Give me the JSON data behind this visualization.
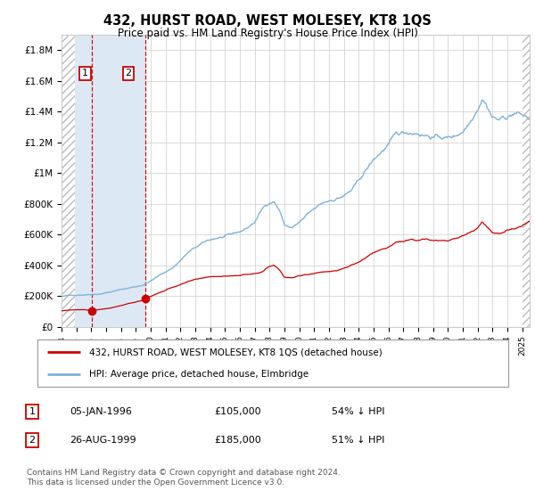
{
  "title": "432, HURST ROAD, WEST MOLESEY, KT8 1QS",
  "subtitle": "Price paid vs. HM Land Registry's House Price Index (HPI)",
  "x_start_year": 1994.0,
  "x_end_year": 2025.5,
  "y_min": 0,
  "y_max": 1900000,
  "y_ticks": [
    0,
    200000,
    400000,
    600000,
    800000,
    1000000,
    1200000,
    1400000,
    1600000,
    1800000
  ],
  "y_tick_labels": [
    "£0",
    "£200K",
    "£400K",
    "£600K",
    "£800K",
    "£1M",
    "£1.2M",
    "£1.4M",
    "£1.6M",
    "£1.8M"
  ],
  "transactions": [
    {
      "date_num": 1996.04,
      "price": 105000,
      "label": "1"
    },
    {
      "date_num": 1999.65,
      "price": 185000,
      "label": "2"
    }
  ],
  "transaction_color": "#cc0000",
  "hpi_color": "#7db3d8",
  "shade_color": "#dce9f5",
  "vline_color": "#cc0000",
  "grid_color": "#cccccc",
  "bg_color": "#ffffff",
  "hatch_color": "#bbbbbb",
  "legend_entries": [
    "432, HURST ROAD, WEST MOLESEY, KT8 1QS (detached house)",
    "HPI: Average price, detached house, Elmbridge"
  ],
  "footnote": "Contains HM Land Registry data © Crown copyright and database right 2024.\nThis data is licensed under the Open Government Licence v3.0.",
  "table_rows": [
    {
      "num": "1",
      "date": "05-JAN-1996",
      "price": "£105,000",
      "hpi": "54% ↓ HPI"
    },
    {
      "num": "2",
      "date": "26-AUG-1999",
      "price": "£185,000",
      "hpi": "51% ↓ HPI"
    }
  ],
  "hpi_keypoints": [
    [
      1994.0,
      195000
    ],
    [
      1994.5,
      200000
    ],
    [
      1995.0,
      205000
    ],
    [
      1995.5,
      210000
    ],
    [
      1996.0,
      215000
    ],
    [
      1996.5,
      220000
    ],
    [
      1997.0,
      230000
    ],
    [
      1997.5,
      240000
    ],
    [
      1998.0,
      250000
    ],
    [
      1998.5,
      260000
    ],
    [
      1999.0,
      270000
    ],
    [
      1999.5,
      285000
    ],
    [
      2000.0,
      310000
    ],
    [
      2000.5,
      340000
    ],
    [
      2001.0,
      370000
    ],
    [
      2001.5,
      400000
    ],
    [
      2002.0,
      450000
    ],
    [
      2002.5,
      500000
    ],
    [
      2003.0,
      530000
    ],
    [
      2003.5,
      555000
    ],
    [
      2004.0,
      575000
    ],
    [
      2004.5,
      590000
    ],
    [
      2005.0,
      595000
    ],
    [
      2005.5,
      600000
    ],
    [
      2006.0,
      615000
    ],
    [
      2006.5,
      640000
    ],
    [
      2007.0,
      680000
    ],
    [
      2007.5,
      760000
    ],
    [
      2008.0,
      810000
    ],
    [
      2008.3,
      820000
    ],
    [
      2008.7,
      760000
    ],
    [
      2009.0,
      665000
    ],
    [
      2009.5,
      650000
    ],
    [
      2010.0,
      680000
    ],
    [
      2010.5,
      720000
    ],
    [
      2011.0,
      750000
    ],
    [
      2011.5,
      780000
    ],
    [
      2012.0,
      800000
    ],
    [
      2012.5,
      820000
    ],
    [
      2013.0,
      840000
    ],
    [
      2013.5,
      870000
    ],
    [
      2014.0,
      920000
    ],
    [
      2014.5,
      990000
    ],
    [
      2015.0,
      1050000
    ],
    [
      2015.5,
      1100000
    ],
    [
      2016.0,
      1150000
    ],
    [
      2016.5,
      1190000
    ],
    [
      2017.0,
      1200000
    ],
    [
      2017.5,
      1210000
    ],
    [
      2018.0,
      1220000
    ],
    [
      2018.5,
      1215000
    ],
    [
      2019.0,
      1210000
    ],
    [
      2019.5,
      1205000
    ],
    [
      2020.0,
      1200000
    ],
    [
      2020.5,
      1210000
    ],
    [
      2021.0,
      1250000
    ],
    [
      2021.5,
      1320000
    ],
    [
      2022.0,
      1430000
    ],
    [
      2022.3,
      1510000
    ],
    [
      2022.5,
      1490000
    ],
    [
      2022.8,
      1440000
    ],
    [
      2023.0,
      1400000
    ],
    [
      2023.5,
      1380000
    ],
    [
      2024.0,
      1400000
    ],
    [
      2024.5,
      1430000
    ],
    [
      2025.0,
      1410000
    ],
    [
      2025.5,
      1380000
    ]
  ],
  "pp_keypoints": [
    [
      1994.0,
      100000
    ],
    [
      1994.5,
      105000
    ],
    [
      1995.0,
      108000
    ],
    [
      1995.5,
      110000
    ],
    [
      1996.04,
      105000
    ],
    [
      1996.5,
      112000
    ],
    [
      1997.0,
      118000
    ],
    [
      1997.5,
      125000
    ],
    [
      1998.0,
      135000
    ],
    [
      1998.5,
      148000
    ],
    [
      1999.0,
      158000
    ],
    [
      1999.5,
      168000
    ],
    [
      1999.65,
      185000
    ],
    [
      2000.0,
      195000
    ],
    [
      2000.5,
      215000
    ],
    [
      2001.0,
      235000
    ],
    [
      2001.5,
      255000
    ],
    [
      2002.0,
      270000
    ],
    [
      2002.5,
      285000
    ],
    [
      2003.0,
      295000
    ],
    [
      2003.5,
      305000
    ],
    [
      2004.0,
      315000
    ],
    [
      2004.5,
      320000
    ],
    [
      2005.0,
      322000
    ],
    [
      2005.5,
      325000
    ],
    [
      2006.0,
      330000
    ],
    [
      2006.5,
      335000
    ],
    [
      2007.0,
      345000
    ],
    [
      2007.5,
      360000
    ],
    [
      2008.0,
      395000
    ],
    [
      2008.3,
      405000
    ],
    [
      2008.7,
      375000
    ],
    [
      2009.0,
      330000
    ],
    [
      2009.5,
      325000
    ],
    [
      2010.0,
      335000
    ],
    [
      2010.5,
      345000
    ],
    [
      2011.0,
      355000
    ],
    [
      2011.5,
      365000
    ],
    [
      2012.0,
      370000
    ],
    [
      2012.5,
      380000
    ],
    [
      2013.0,
      390000
    ],
    [
      2013.5,
      410000
    ],
    [
      2014.0,
      430000
    ],
    [
      2014.5,
      460000
    ],
    [
      2015.0,
      490000
    ],
    [
      2015.5,
      510000
    ],
    [
      2016.0,
      530000
    ],
    [
      2016.5,
      555000
    ],
    [
      2017.0,
      560000
    ],
    [
      2017.5,
      570000
    ],
    [
      2018.0,
      575000
    ],
    [
      2018.5,
      580000
    ],
    [
      2019.0,
      575000
    ],
    [
      2019.5,
      570000
    ],
    [
      2020.0,
      565000
    ],
    [
      2020.5,
      575000
    ],
    [
      2021.0,
      595000
    ],
    [
      2021.5,
      620000
    ],
    [
      2022.0,
      650000
    ],
    [
      2022.3,
      690000
    ],
    [
      2022.5,
      670000
    ],
    [
      2022.8,
      640000
    ],
    [
      2023.0,
      620000
    ],
    [
      2023.5,
      620000
    ],
    [
      2024.0,
      640000
    ],
    [
      2024.5,
      650000
    ],
    [
      2025.0,
      670000
    ],
    [
      2025.5,
      690000
    ]
  ]
}
